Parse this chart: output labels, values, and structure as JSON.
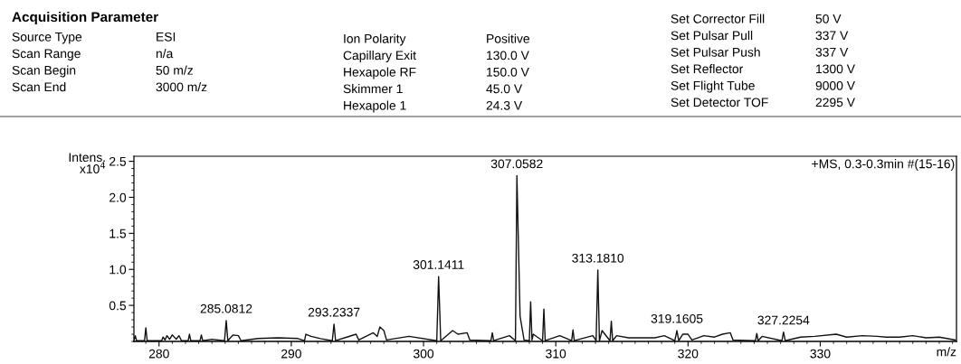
{
  "chart_data": {
    "type": "line",
    "title": "Acquisition Parameter",
    "xlabel": "m/z",
    "ylabel": "Intens.\nx10$^{4}$",
    "color": "#111111",
    "x": [
      278.1,
      278.2,
      278.3,
      278.9,
      279.0,
      279.1,
      280.2,
      280.3,
      280.45,
      280.6,
      280.8,
      281.0,
      281.3,
      281.5,
      281.7,
      282.2,
      282.3,
      282.4,
      283.1,
      283.2,
      283.3,
      284.0,
      284.95,
      285.08,
      285.2,
      285.6,
      286.0,
      286.2,
      287.5,
      289.0,
      290.5,
      291.0,
      291.1,
      291.5,
      292.2,
      293.1,
      293.23,
      293.35,
      294.2,
      294.9,
      295.1,
      296.2,
      296.5,
      296.7,
      297.0,
      297.2,
      298.9,
      301.0,
      301.14,
      301.3,
      302.2,
      302.6,
      303.3,
      303.5,
      305.1,
      305.2,
      305.3,
      306.5,
      306.95,
      307.06,
      307.3,
      307.6,
      308.0,
      308.1,
      308.2,
      308.3,
      309.0,
      309.1,
      309.2,
      310.3,
      311.2,
      311.3,
      311.4,
      312.8,
      313.05,
      313.18,
      313.3,
      313.5,
      314.1,
      314.2,
      314.3,
      314.6,
      315.5,
      317.5,
      318.2,
      319.0,
      319.16,
      319.3,
      319.6,
      320.0,
      320.3,
      321.2,
      322.0,
      322.6,
      323.2,
      323.4,
      325.1,
      325.2,
      325.3,
      325.6,
      327.1,
      327.22,
      327.35,
      328.5,
      329.6,
      331.2,
      332.0,
      333.2,
      334.3,
      335.0,
      336.0,
      337.0,
      338.0,
      339.0,
      340.2
    ],
    "values": [
      0.02,
      0.08,
      0.01,
      0.01,
      0.19,
      0.01,
      0.01,
      0.06,
      0.02,
      0.08,
      0.03,
      0.09,
      0.03,
      0.08,
      0.01,
      0.01,
      0.1,
      0.01,
      0.01,
      0.09,
      0.01,
      0.03,
      0.01,
      0.29,
      0.01,
      0.09,
      0.08,
      0.01,
      0.04,
      0.05,
      0.04,
      0.01,
      0.1,
      0.07,
      0.04,
      0.01,
      0.24,
      0.01,
      0.06,
      0.1,
      0.02,
      0.12,
      0.07,
      0.2,
      0.15,
      0.02,
      0.07,
      0.01,
      0.9,
      0.01,
      0.15,
      0.1,
      0.12,
      0.02,
      0.01,
      0.12,
      0.01,
      0.08,
      0.01,
      2.3,
      0.35,
      0.02,
      0.01,
      0.55,
      0.02,
      0.1,
      0.01,
      0.45,
      0.01,
      0.08,
      0.01,
      0.16,
      0.01,
      0.08,
      0.01,
      0.99,
      0.01,
      0.15,
      0.01,
      0.28,
      0.01,
      0.08,
      0.05,
      0.05,
      0.08,
      0.01,
      0.15,
      0.01,
      0.1,
      0.1,
      0.02,
      0.08,
      0.06,
      0.1,
      0.12,
      0.02,
      0.01,
      0.11,
      0.01,
      0.07,
      0.01,
      0.13,
      0.01,
      0.06,
      0.07,
      0.1,
      0.06,
      0.08,
      0.07,
      0.06,
      0.06,
      0.08,
      0.05,
      0.06,
      0.02
    ],
    "xlim": [
      278.1,
      340.3
    ],
    "ylim": [
      0,
      2.57
    ],
    "xticks": [
      280,
      290,
      300,
      310,
      320,
      330
    ],
    "yticks": [
      {
        "value": 0.5,
        "label": "0.5"
      },
      {
        "value": 1,
        "label": "1.0"
      },
      {
        "value": 1.5,
        "label": "1.5"
      },
      {
        "value": 2,
        "label": "2.0"
      },
      {
        "value": 2.5,
        "label": "2.5"
      }
    ],
    "grid": false,
    "marker": "none",
    "line_style": "solid",
    "annotations": [
      "Source Type",
      "Scan Range",
      "Scan Begin",
      "Scan End",
      "ESI",
      "n/a",
      "50 m/z",
      "3000 m/z",
      "Ion Polarity",
      "Capillary Exit",
      "Hexapole RF",
      "Skimmer 1",
      "Hexapole 1",
      "Positive",
      "130.0 V",
      "150.0 V",
      "45.0 V",
      "24.3 V",
      "Set Corrector Fill",
      "Set Pulsar Pull",
      "Set Pulsar Push",
      "Set Reflector",
      "Set Flight Tube",
      "Set Detector TOF",
      "50 V",
      "337 V",
      "337 V",
      "1300 V",
      "9000 V",
      "2295 V",
      "+MS, 0.3-0.3min #(15-16)",
      {
        "text": "285.0812",
        "x": 285.08,
        "y": 0.29
      },
      {
        "text": "293.2337",
        "x": 293.23,
        "y": 0.24
      },
      {
        "text": "301.1411",
        "x": 301.14,
        "y": 0.9
      },
      {
        "text": "307.0582",
        "x": 307.06,
        "y": 2.3
      },
      {
        "text": "313.1810",
        "x": 313.18,
        "y": 0.99
      },
      {
        "text": "319.1605",
        "x": 319.16,
        "y": 0.15
      },
      {
        "text": "327.2254",
        "x": 327.22,
        "y": 0.13
      }
    ]
  }
}
